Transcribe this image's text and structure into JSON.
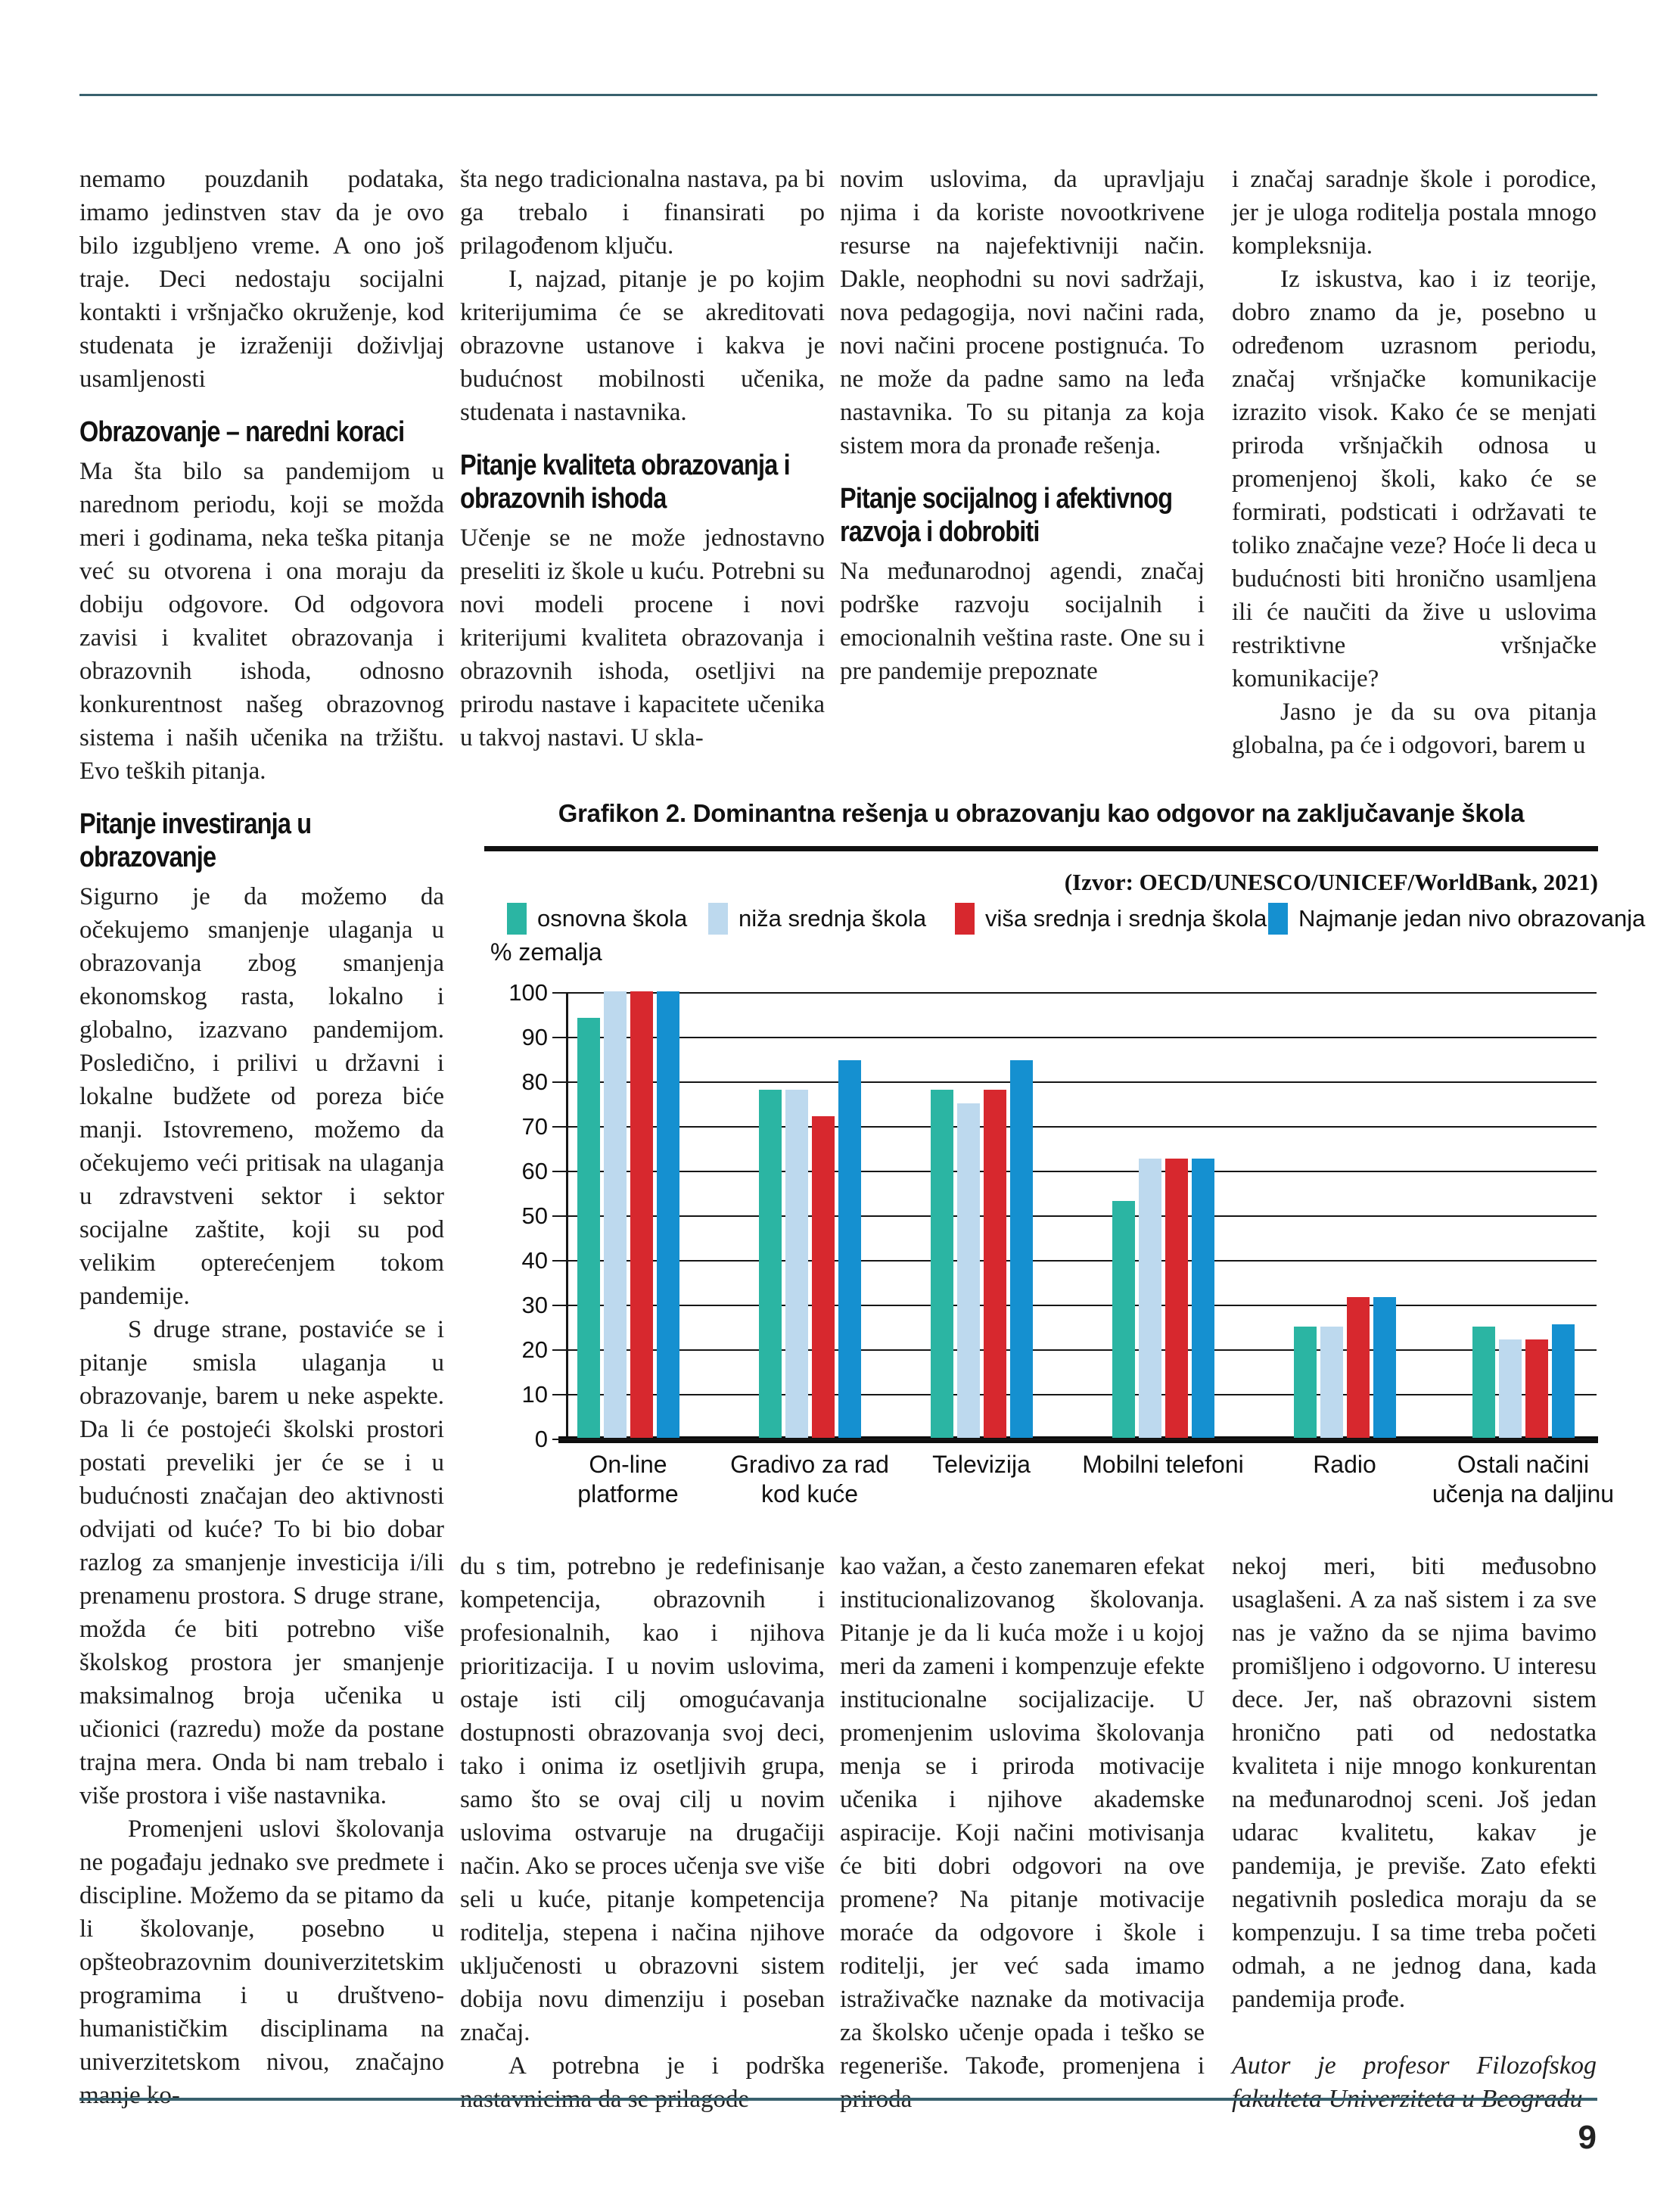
{
  "page": {
    "number": "9"
  },
  "columns": {
    "col1": {
      "p1": "nemamo pouzdanih podataka, imamo jedinstven stav da je ovo bilo izgubljeno vreme. A ono još traje. Deci nedostaju socijalni kontakti i vršnjačko okruženje, kod studenata je izraženiji doživljaj usamljenosti",
      "h1": "Obrazovanje – naredni koraci",
      "p2": "Ma šta bilo sa pandemijom u narednom periodu, koji se možda meri i godinama, neka teška pitanja već su otvorena i ona moraju da dobiju odgovore. Od odgovora zavisi i kvalitet obrazovanja i obrazovnih ishoda, odnosno konkurentnost našeg obrazovnog sistema i naših učenika na tržištu. Evo teških pitanja.",
      "h2": "Pitanje investiranja u obrazovanje",
      "p3": "Sigurno je da možemo da očekujemo smanjenje ulaganja u obrazovanja zbog smanjenja ekonomskog rasta, lokalno i globalno, izazvano pandemijom. Posledično, i prilivi u državni i lokalne budžete od poreza biće manji. Istovremeno, možemo da očekujemo veći pritisak na ulaganja u zdravstveni sektor i sektor socijalne zaštite, koji su pod velikim opterećenjem tokom pandemije.",
      "p4": "S druge strane, postaviće se i pitanje smisla ulaganja u obrazovanje, barem u neke aspekte. Da li će postojeći školski prostori postati preveliki jer će se i u budućnosti značajan deo aktivnosti odvijati od kuće? To bi bio dobar razlog za smanjenje investicija i/ili prenamenu prostora. S druge strane, možda će biti potrebno više školskog prostora jer smanjenje maksimalnog broja učenika u učionici (razredu) može da postane trajna mera. Onda bi nam trebalo i više prostora i više nastavnika.",
      "p5": "Promenjeni uslovi školovanja ne pogađaju jednako sve predmete i discipline. Možemo da se pitamo da li školovanje, posebno u opšteobrazovnim douniverzitetskim programima i u društveno-humanističkim disciplinama na univerzitetskom nivou, značajno manje ko-"
    },
    "col2": {
      "p1": "šta nego tradicionalna nastava, pa bi ga trebalo i finansirati po prilagođenom ključu.",
      "p2": "I, najzad, pitanje je po kojim kriterijumima će se akreditovati obrazovne ustanove i kakva je budućnost mobilnosti učenika, studenata i nastavnika.",
      "h1": "Pitanje kvaliteta obrazovanja i obrazovnih ishoda",
      "p3": "Učenje se ne može jednostavno preseliti iz škole u kuću. Potrebni su novi modeli procene i novi kriterijumi kvaliteta obrazovanja i obrazovnih ishoda, osetljivi na prirodu nastave i kapacitete učenika u takvoj nastavi. U skla-",
      "p4": "du s tim, potrebno je redefinisanje kompetencija, obrazovnih i profesionalnih, kao i njihova prioritizacija. I u novim uslovima, ostaje isti cilj omogućavanja dostupnosti obrazovanja svoj deci, tako i onima iz osetljivih grupa, samo što se ovaj cilj u novim uslovima ostvaruje na drugačiji način. Ako se proces učenja sve više seli u kuće, pitanje kompetencija roditelja, stepena i načina njihove uključenosti u obrazovni sistem dobija novu dimenziju i poseban značaj.",
      "p5": "A potrebna je i podrška nastavnicima da se prilagode"
    },
    "col3": {
      "p1": "novim uslovima, da upravljaju njima i da koriste novootkrivene resurse na najefektivniji način. Dakle, neophodni su novi sadržaji, nova pedagogija, novi načini rada, novi načini procene postignuća. To ne može da padne samo na leđa nastavnika. To su pitanja za koja sistem mora da pronađe rešenja.",
      "h1": "Pitanje socijalnog i afektivnog razvoja i dobrobiti",
      "p2": "Na međunarodnoj agendi, značaj podrške razvoju socijalnih i emocionalnih veština raste. One su i pre pandemije prepoznate",
      "p3": "kao važan, a često zanemaren efekat institucionalizovanog školovanja. Pitanje je da li kuća može i u kojoj meri da zameni i kompenzuje efekte institucionalne socijalizacije. U promenjenim uslovima školovanja menja se i priroda motivacije učenika i njihove akademske aspiracije. Koji načini motivisanja će biti dobri odgovori na ove promene? Na pitanje motivacije moraće da odgovore i škole i roditelji, jer već sada imamo istraživačke naznake da motivacija za školsko učenje opada i teško se regeneriše. Takođe, promenjena i priroda"
    },
    "col4": {
      "p1": "i značaj saradnje škole i porodice, jer je uloga roditelja postala mnogo kompleksnija.",
      "p2": "Iz iskustva, kao i iz teorije, dobro znamo da je, posebno u određenom uzrasnom periodu, značaj vršnjačke komunikacije izrazito visok. Kako će se menjati priroda vršnjačkih odnosa u promenjenoj školi, kako će se formirati, podsticati i održavati te toliko značajne veze? Hoće li deca u budućnosti biti hronično usamljena ili će naučiti da žive u uslovima restriktivne vršnjačke komunikacije?",
      "p3": "Jasno je da su ova pitanja globalna, pa će i odgovori, barem u",
      "p4": "nekoj meri, biti međusobno usaglašeni. A za naš sistem i za sve nas je važno da se njima bavimo promišljeno i odgovorno. U interesu dece. Jer, naš obrazovni sistem hronično pati od nedostatka kvaliteta i nije mnogo konkurentan na međunarodnoj sceni. Još jedan udarac kvalitetu, kakav je pandemija, je previše. Zato efekti negativnih posledica moraju da se kompenzuju. I sa time treba početi odmah, a ne jednog dana, kada pandemija prođe.",
      "author": "Autor je profesor Filozofskog fakulteta Univerziteta u Beogradu"
    }
  },
  "chart_data": {
    "type": "bar",
    "title": "Grafikon 2. Dominantna rešenja u obrazovanju kao odgovor na zaključavanje škola",
    "source": "(Izvor: OECD/UNESCO/UNICEF/WorldBank, 2021)",
    "ylabel": "% zemalja",
    "xlabel": "",
    "ylim": [
      0,
      100
    ],
    "ytick_step": 10,
    "grid": true,
    "legend_position": "top",
    "categories": [
      "On-line platforme",
      "Gradivo za rad kod kuće",
      "Televizija",
      "Mobilni telefoni",
      "Radio",
      "Ostali načini učenja na daljinu"
    ],
    "categories_multiline": [
      [
        "On-line",
        "platforme"
      ],
      [
        "Gradivo za rad",
        "kod kuće"
      ],
      [
        "Televizija"
      ],
      [
        "Mobilni telefoni"
      ],
      [
        "Radio"
      ],
      [
        "Ostali načini",
        "učenja na daljinu"
      ]
    ],
    "series": [
      {
        "name": "osnovna škola",
        "color": "#2BB5A3",
        "values": [
          94,
          78,
          78,
          53,
          25,
          25
        ]
      },
      {
        "name": "niža srednja škola",
        "color": "#BDD9EE",
        "values": [
          100,
          78,
          75,
          62.5,
          25,
          22
        ]
      },
      {
        "name": "viša srednja i srednja škola",
        "color": "#D7282E",
        "values": [
          100,
          72,
          78,
          62.5,
          31.5,
          22
        ]
      },
      {
        "name": "Najmanje jedan nivo obrazovanja",
        "color": "#1590D0",
        "values": [
          100,
          84.5,
          84.5,
          62.5,
          31.5,
          25.5
        ]
      }
    ]
  }
}
